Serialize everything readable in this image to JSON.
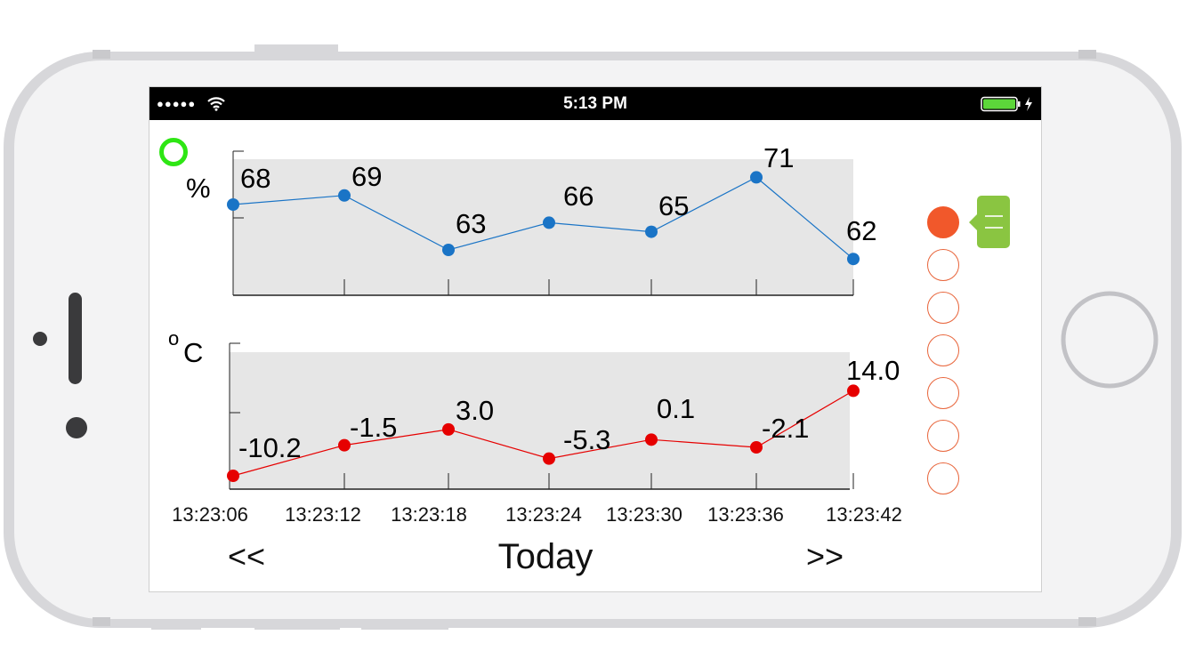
{
  "status_bar": {
    "signal": "●●●●●",
    "time": "5:13 PM"
  },
  "colors": {
    "humidity_series": "#1a74c6",
    "temperature_series": "#e60000",
    "plot_background": "#e6e6e6",
    "active_dot": "#f1582b",
    "menu_button": "#8ac541",
    "status_ring": "#2ee614"
  },
  "icons": {
    "status": "green-ring-icon",
    "menu": "menu-icon",
    "wifi": "wifi-icon",
    "battery": "battery-charging-icon"
  },
  "humidity_chart": {
    "unit": "%",
    "values": [
      "68",
      "69",
      "63",
      "66",
      "65",
      "71",
      "62"
    ]
  },
  "temperature_chart": {
    "unit": "C",
    "unit_prefix": "o",
    "values": [
      "-10.2",
      "-1.5",
      "3.0",
      "-5.3",
      "0.1",
      "-2.1",
      "14.0"
    ]
  },
  "chart_data": [
    {
      "type": "line",
      "title": "",
      "xlabel": "",
      "ylabel": "%",
      "x": [
        "13:23:06",
        "13:23:12",
        "13:23:18",
        "13:23:24",
        "13:23:30",
        "13:23:36",
        "13:23:42"
      ],
      "series": [
        {
          "values": [
            68,
            69,
            63,
            66,
            65,
            71,
            62
          ]
        }
      ],
      "ylim": [
        58,
        73
      ],
      "grid": false
    },
    {
      "type": "line",
      "title": "",
      "xlabel": "",
      "ylabel": "°C",
      "x": [
        "13:23:06",
        "13:23:12",
        "13:23:18",
        "13:23:24",
        "13:23:30",
        "13:23:36",
        "13:23:42"
      ],
      "series": [
        {
          "values": [
            -10.2,
            -1.5,
            3.0,
            -5.3,
            0.1,
            -2.1,
            14.0
          ]
        }
      ],
      "grid": false
    }
  ],
  "x_ticks": [
    "13:23:06",
    "13:23:12",
    "13:23:18",
    "13:23:24",
    "13:23:30",
    "13:23:36",
    "13:23:42"
  ],
  "navigation": {
    "prev": "<<",
    "title": "Today",
    "next": ">>"
  },
  "series_selector": {
    "count": 7,
    "active_index": 0
  }
}
